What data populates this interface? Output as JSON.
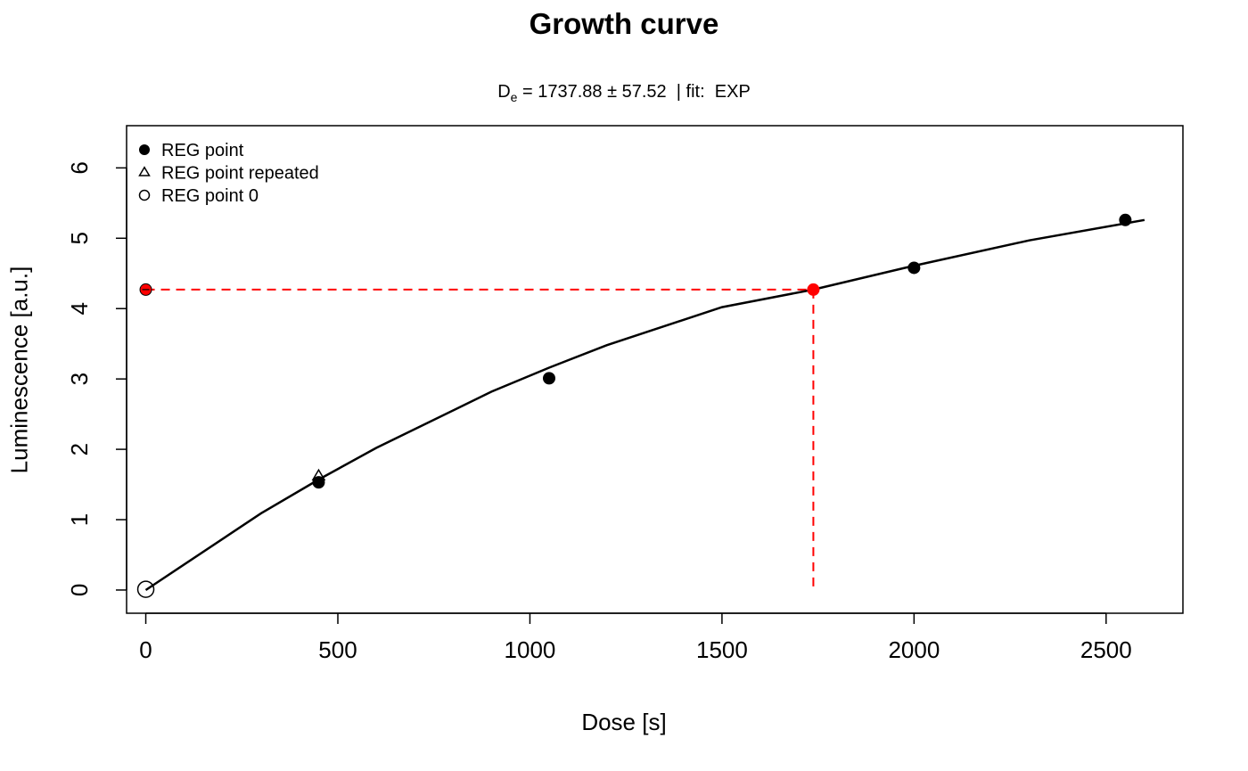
{
  "chart_data": {
    "type": "scatter",
    "title": "Growth curve",
    "subtitle": {
      "de_symbol": "D",
      "de_subscript": "e",
      "de_text": " = 1737.88 ± 57.52  | fit:  EXP"
    },
    "xlabel": "Dose [s]",
    "ylabel": "Luminescence [a.u.]",
    "xlim": [
      -50,
      2700
    ],
    "ylim": [
      -0.33,
      6.6
    ],
    "xticks": [
      0,
      500,
      1000,
      1500,
      2000,
      2500
    ],
    "yticks": [
      0,
      1,
      2,
      3,
      4,
      5,
      6
    ],
    "grid": false,
    "legend": {
      "position": "top-left",
      "entries": [
        {
          "label": "REG point",
          "marker": "filled-circle"
        },
        {
          "label": "REG point repeated",
          "marker": "triangle"
        },
        {
          "label": "REG point 0",
          "marker": "open-circle"
        }
      ]
    },
    "series": [
      {
        "name": "REG point",
        "marker": "filled-circle",
        "color": "#000000",
        "points": [
          [
            450,
            1.53
          ],
          [
            1050,
            3.01
          ],
          [
            2000,
            4.58
          ],
          [
            2550,
            5.26
          ]
        ]
      },
      {
        "name": "REG point repeated",
        "marker": "triangle",
        "color": "#000000",
        "points": [
          [
            450,
            1.62
          ]
        ]
      },
      {
        "name": "REG point 0",
        "marker": "open-circle",
        "color": "#000000",
        "points": [
          [
            0,
            0.01
          ]
        ]
      }
    ],
    "fit": {
      "type": "exponential",
      "color": "#000000",
      "curve": [
        [
          0,
          0.0
        ],
        [
          300,
          1.09
        ],
        [
          450,
          1.57
        ],
        [
          600,
          2.02
        ],
        [
          900,
          2.82
        ],
        [
          1050,
          3.16
        ],
        [
          1200,
          3.48
        ],
        [
          1500,
          4.02
        ],
        [
          1737.88,
          4.27
        ],
        [
          2000,
          4.61
        ],
        [
          2300,
          4.97
        ],
        [
          2600,
          5.26
        ]
      ]
    },
    "de_marker": {
      "dose": 1737.88,
      "luminescence": 4.27,
      "color": "#ff0000"
    },
    "natural_signal": {
      "dose": 0,
      "luminescence": 4.27,
      "color": "#ff0000"
    }
  }
}
